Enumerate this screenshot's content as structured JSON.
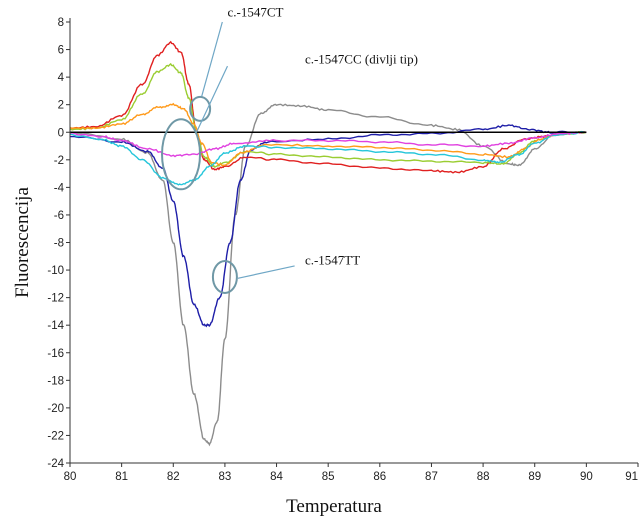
{
  "chart_data": {
    "type": "line",
    "xlabel": "Temperatura",
    "ylabel": "Fluorescencija",
    "xlim": [
      80,
      91
    ],
    "ylim": [
      -24,
      8
    ],
    "x_ticks": [
      80,
      81,
      82,
      83,
      84,
      85,
      86,
      87,
      88,
      89,
      90,
      91
    ],
    "y_ticks": [
      8,
      6,
      4,
      2,
      0,
      -2,
      -4,
      -6,
      -8,
      -10,
      -12,
      -14,
      -16,
      -18,
      -20,
      -22,
      -24
    ],
    "x_tick_labels": [
      "80",
      "81",
      "82",
      "83",
      "84",
      "85",
      "86",
      "87",
      "88",
      "89",
      "90",
      "91"
    ],
    "y_tick_labels": [
      "8",
      "6",
      "4",
      "2",
      "0",
      "-2",
      "-4",
      "-6",
      "-8",
      "-10",
      "-12",
      "-14",
      "-16",
      "-18",
      "-20",
      "-22",
      "-24"
    ],
    "baseline": 0,
    "grid": false,
    "series": [
      {
        "color": "#8c8c8c",
        "points": [
          [
            80,
            0.0
          ],
          [
            81,
            -0.5
          ],
          [
            81.5,
            -1.5
          ],
          [
            81.8,
            -3.5
          ],
          [
            82.0,
            -8
          ],
          [
            82.2,
            -14
          ],
          [
            82.4,
            -19
          ],
          [
            82.6,
            -22.3
          ],
          [
            82.7,
            -22.6
          ],
          [
            82.85,
            -21
          ],
          [
            83.0,
            -15
          ],
          [
            83.2,
            -6
          ],
          [
            83.4,
            -1
          ],
          [
            83.7,
            1.4
          ],
          [
            84.0,
            2.0
          ],
          [
            84.5,
            1.9
          ],
          [
            85,
            1.6
          ],
          [
            86,
            1.1
          ],
          [
            87,
            0.5
          ],
          [
            87.5,
            0.2
          ],
          [
            88,
            -1.0
          ],
          [
            88.5,
            -2.3
          ],
          [
            88.7,
            -2.4
          ],
          [
            89.0,
            -1.2
          ],
          [
            89.4,
            -0.1
          ],
          [
            90,
            0
          ]
        ]
      },
      {
        "color": "#1e1ea8",
        "points": [
          [
            80,
            -0.3
          ],
          [
            81,
            -0.7
          ],
          [
            81.5,
            -1.4
          ],
          [
            81.8,
            -2.6
          ],
          [
            82.0,
            -5
          ],
          [
            82.2,
            -9
          ],
          [
            82.4,
            -12.5
          ],
          [
            82.6,
            -14.0
          ],
          [
            82.7,
            -14.0
          ],
          [
            82.9,
            -12
          ],
          [
            83.1,
            -8
          ],
          [
            83.3,
            -3.5
          ],
          [
            83.5,
            -1.3
          ],
          [
            83.8,
            -0.7
          ],
          [
            85,
            -0.5
          ],
          [
            86,
            -0.2
          ],
          [
            87,
            -0.1
          ],
          [
            88,
            0.2
          ],
          [
            88.5,
            0.5
          ],
          [
            88.9,
            0.2
          ],
          [
            89.3,
            0.0
          ],
          [
            90,
            0
          ]
        ]
      },
      {
        "color": "#e02020",
        "points": [
          [
            80,
            0.3
          ],
          [
            80.5,
            0.4
          ],
          [
            81.0,
            1.2
          ],
          [
            81.4,
            3.5
          ],
          [
            81.7,
            5.6
          ],
          [
            81.95,
            6.5
          ],
          [
            82.15,
            5.8
          ],
          [
            82.3,
            3.5
          ],
          [
            82.45,
            0
          ],
          [
            82.6,
            -2
          ],
          [
            82.8,
            -2.7
          ],
          [
            83.0,
            -2.5
          ],
          [
            83.4,
            -1.8
          ],
          [
            84,
            -2.0
          ],
          [
            85,
            -2.3
          ],
          [
            86,
            -2.6
          ],
          [
            87,
            -2.8
          ],
          [
            87.5,
            -2.9
          ],
          [
            88,
            -2.5
          ],
          [
            88.4,
            -1.2
          ],
          [
            88.8,
            -0.5
          ],
          [
            89.2,
            -0.3
          ],
          [
            90,
            0
          ]
        ]
      },
      {
        "color": "#9acd32",
        "points": [
          [
            80,
            0.2
          ],
          [
            80.5,
            0.3
          ],
          [
            81.0,
            0.9
          ],
          [
            81.4,
            2.8
          ],
          [
            81.7,
            4.4
          ],
          [
            81.95,
            4.9
          ],
          [
            82.15,
            4.3
          ],
          [
            82.3,
            2.5
          ],
          [
            82.45,
            0
          ],
          [
            82.6,
            -1.8
          ],
          [
            82.8,
            -2.5
          ],
          [
            83.0,
            -2.2
          ],
          [
            83.4,
            -1.4
          ],
          [
            84,
            -1.6
          ],
          [
            85,
            -1.8
          ],
          [
            86,
            -2.0
          ],
          [
            87,
            -2.1
          ],
          [
            88,
            -2.2
          ],
          [
            88.4,
            -2.3
          ],
          [
            88.7,
            -1.5
          ],
          [
            89.0,
            -0.6
          ],
          [
            89.4,
            -0.2
          ],
          [
            90,
            0
          ]
        ]
      },
      {
        "color": "#ff9a1a",
        "points": [
          [
            80,
            0.3
          ],
          [
            80.5,
            0.3
          ],
          [
            81.0,
            0.6
          ],
          [
            81.4,
            1.3
          ],
          [
            81.7,
            1.8
          ],
          [
            82.0,
            2.0
          ],
          [
            82.2,
            1.7
          ],
          [
            82.4,
            0.6
          ],
          [
            82.55,
            -0.8
          ],
          [
            82.75,
            -2.2
          ],
          [
            83.0,
            -2.4
          ],
          [
            83.3,
            -1.5
          ],
          [
            83.8,
            -0.9
          ],
          [
            85,
            -1.0
          ],
          [
            86,
            -1.1
          ],
          [
            87,
            -1.3
          ],
          [
            88,
            -1.6
          ],
          [
            88.5,
            -1.8
          ],
          [
            88.8,
            -1.2
          ],
          [
            89.1,
            -0.5
          ],
          [
            89.5,
            -0.1
          ],
          [
            90,
            0
          ]
        ]
      },
      {
        "color": "#26c6da",
        "points": [
          [
            80,
            -0.2
          ],
          [
            80.6,
            -0.5
          ],
          [
            81.0,
            -1.0
          ],
          [
            81.4,
            -2.0
          ],
          [
            81.8,
            -3.3
          ],
          [
            82.1,
            -3.8
          ],
          [
            82.4,
            -3.5
          ],
          [
            82.7,
            -2.5
          ],
          [
            83.0,
            -1.5
          ],
          [
            83.4,
            -1.0
          ],
          [
            84,
            -1.1
          ],
          [
            85,
            -1.2
          ],
          [
            86,
            -1.4
          ],
          [
            87,
            -1.6
          ],
          [
            88,
            -2.0
          ],
          [
            88.3,
            -2.2
          ],
          [
            88.7,
            -1.6
          ],
          [
            89.0,
            -0.8
          ],
          [
            89.4,
            -0.2
          ],
          [
            90,
            0
          ]
        ]
      },
      {
        "color": "#e040e0",
        "points": [
          [
            80,
            -0.1
          ],
          [
            80.6,
            -0.3
          ],
          [
            81.0,
            -0.6
          ],
          [
            81.5,
            -1.2
          ],
          [
            82.0,
            -1.7
          ],
          [
            82.4,
            -1.6
          ],
          [
            82.8,
            -1.2
          ],
          [
            83.2,
            -0.8
          ],
          [
            84,
            -0.6
          ],
          [
            85,
            -0.6
          ],
          [
            86,
            -0.7
          ],
          [
            87,
            -0.9
          ],
          [
            88,
            -1.0
          ],
          [
            88.5,
            -0.8
          ],
          [
            89.0,
            -0.4
          ],
          [
            89.5,
            -0.1
          ],
          [
            90,
            0
          ]
        ]
      }
    ],
    "annotations": [
      {
        "text": "c.-1547CT"
      },
      {
        "text": "c.-1547CC (divlji tip)"
      },
      {
        "text": "c.-1547TT"
      }
    ]
  }
}
